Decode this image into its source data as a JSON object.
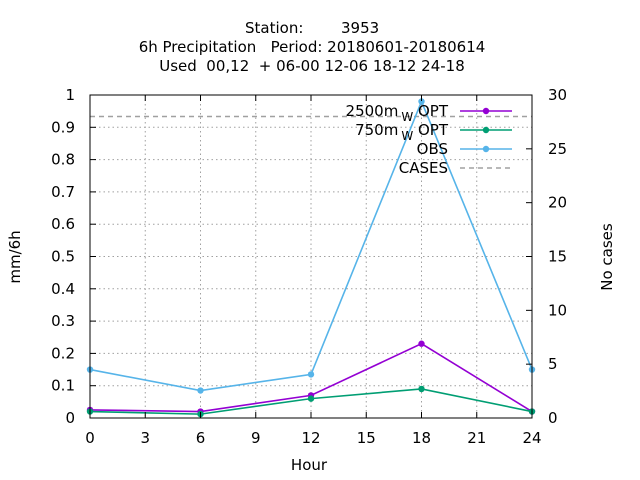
{
  "chart_data": {
    "type": "line",
    "title": {
      "station_label": "Station:",
      "station_id": "3953",
      "line2": "6h Precipitation   Period: 20180601-20180614",
      "line3": "Used  00,12  + 06-00 12-06 18-12 24-18"
    },
    "xlabel": "Hour",
    "ylabel": "mm/6h",
    "y2label": "No cases",
    "xlim": [
      0,
      24
    ],
    "ylim": [
      0,
      1
    ],
    "y2lim": [
      0,
      30
    ],
    "x_ticks": [
      "0",
      "3",
      "6",
      "9",
      "12",
      "15",
      "18",
      "21",
      "24"
    ],
    "y_ticks": [
      "0",
      "0.1",
      "0.2",
      "0.3",
      "0.4",
      "0.5",
      "0.6",
      "0.7",
      "0.8",
      "0.9",
      "1"
    ],
    "y2_ticks": [
      "0",
      "5",
      "10",
      "15",
      "20",
      "25",
      "30"
    ],
    "grid": true,
    "legend_position": "top-right",
    "series": [
      {
        "name": "2500m",
        "name_sub": "W",
        "name_suffix": "OPT",
        "color": "#9400d3",
        "x": [
          0,
          6,
          12,
          18,
          24
        ],
        "values": [
          0.025,
          0.02,
          0.07,
          0.23,
          0.02
        ]
      },
      {
        "name": "750m",
        "name_sub": "W",
        "name_suffix": "OPT",
        "color": "#009e73",
        "x": [
          0,
          6,
          12,
          18,
          24
        ],
        "values": [
          0.02,
          0.012,
          0.06,
          0.09,
          0.02
        ]
      },
      {
        "name": "OBS",
        "color": "#56b4e9",
        "x": [
          0,
          6,
          12,
          18,
          24
        ],
        "values": [
          0.15,
          0.085,
          0.135,
          0.98,
          0.15
        ]
      }
    ],
    "cases": {
      "name": "CASES",
      "color": "#a0a0a0",
      "value": 28
    }
  }
}
